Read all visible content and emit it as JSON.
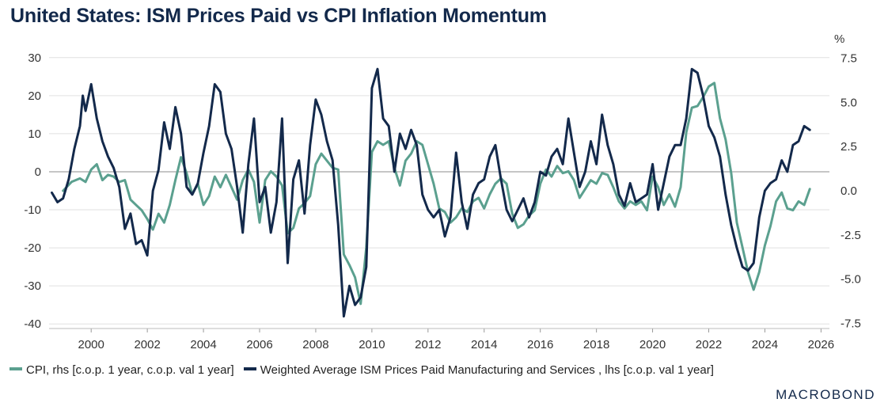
{
  "title": "United States: ISM Prices Paid vs CPI Inflation Momentum",
  "brand": "MACROBOND",
  "colors": {
    "cpi": "#5ba08f",
    "ism": "#13294b",
    "grid": "#e1e1e1",
    "zero": "#8c8c8c"
  },
  "chart_data": {
    "type": "line",
    "title": "United States: ISM Prices Paid vs CPI Inflation Momentum",
    "xlabel": "",
    "ylabel_left": "",
    "ylabel_right": "%",
    "xlim": [
      1998.5,
      2026.3
    ],
    "ylim_left": [
      -41,
      31
    ],
    "ylim_right": [
      -7.75,
      7.75
    ],
    "x_ticks": [
      2000,
      2002,
      2004,
      2006,
      2008,
      2010,
      2012,
      2014,
      2016,
      2018,
      2020,
      2022,
      2024,
      2026
    ],
    "y_ticks_left": [
      30,
      20,
      10,
      0,
      -10,
      -20,
      -30,
      -40
    ],
    "y_ticks_right": [
      "7.5",
      "5.0",
      "2.5",
      "0.0",
      "-2.5",
      "-5.0",
      "-7.5"
    ],
    "grid": true,
    "legend_position": "bottom",
    "series": [
      {
        "name": "CPI, rhs [c.o.p. 1 year, c.o.p. val 1 year]",
        "axis": "right",
        "points": [
          [
            1999.0,
            0.0
          ],
          [
            1999.3,
            0.5
          ],
          [
            1999.6,
            0.7
          ],
          [
            1999.8,
            0.5
          ],
          [
            2000.0,
            1.2
          ],
          [
            2000.2,
            1.5
          ],
          [
            2000.4,
            0.6
          ],
          [
            2000.6,
            0.9
          ],
          [
            2000.8,
            0.8
          ],
          [
            2001.0,
            0.5
          ],
          [
            2001.2,
            0.6
          ],
          [
            2001.4,
            -0.5
          ],
          [
            2001.6,
            -0.8
          ],
          [
            2001.8,
            -1.1
          ],
          [
            2002.0,
            -1.6
          ],
          [
            2002.2,
            -2.2
          ],
          [
            2002.4,
            -1.3
          ],
          [
            2002.6,
            -1.8
          ],
          [
            2002.8,
            -0.8
          ],
          [
            2003.0,
            0.6
          ],
          [
            2003.2,
            1.9
          ],
          [
            2003.4,
            1.0
          ],
          [
            2003.6,
            -0.2
          ],
          [
            2003.8,
            0.4
          ],
          [
            2004.0,
            -0.8
          ],
          [
            2004.2,
            -0.3
          ],
          [
            2004.4,
            0.8
          ],
          [
            2004.6,
            0.2
          ],
          [
            2004.8,
            0.9
          ],
          [
            2005.0,
            0.2
          ],
          [
            2005.2,
            -0.5
          ],
          [
            2005.4,
            0.6
          ],
          [
            2005.6,
            1.2
          ],
          [
            2005.8,
            0.5
          ],
          [
            2006.0,
            -1.8
          ],
          [
            2006.2,
            0.6
          ],
          [
            2006.4,
            1.1
          ],
          [
            2006.6,
            0.8
          ],
          [
            2006.8,
            0.3
          ],
          [
            2007.0,
            -2.4
          ],
          [
            2007.2,
            -2.1
          ],
          [
            2007.4,
            -1.0
          ],
          [
            2007.6,
            -0.7
          ],
          [
            2007.8,
            -0.3
          ],
          [
            2008.0,
            1.5
          ],
          [
            2008.2,
            2.1
          ],
          [
            2008.4,
            1.7
          ],
          [
            2008.6,
            1.3
          ],
          [
            2008.8,
            1.2
          ],
          [
            2009.0,
            -3.6
          ],
          [
            2009.2,
            -4.2
          ],
          [
            2009.4,
            -4.9
          ],
          [
            2009.6,
            -6.4
          ],
          [
            2009.8,
            -3.2
          ],
          [
            2010.0,
            2.2
          ],
          [
            2010.2,
            2.8
          ],
          [
            2010.4,
            2.6
          ],
          [
            2010.6,
            2.8
          ],
          [
            2010.8,
            1.3
          ],
          [
            2011.0,
            0.3
          ],
          [
            2011.2,
            1.7
          ],
          [
            2011.4,
            2.1
          ],
          [
            2011.6,
            2.8
          ],
          [
            2011.8,
            2.6
          ],
          [
            2012.0,
            1.5
          ],
          [
            2012.2,
            0.4
          ],
          [
            2012.4,
            -1.0
          ],
          [
            2012.6,
            -1.2
          ],
          [
            2012.8,
            -1.8
          ],
          [
            2013.0,
            -1.5
          ],
          [
            2013.2,
            -1.0
          ],
          [
            2013.4,
            -1.2
          ],
          [
            2013.6,
            -0.6
          ],
          [
            2013.8,
            -0.4
          ],
          [
            2014.0,
            -1.0
          ],
          [
            2014.2,
            -0.2
          ],
          [
            2014.4,
            0.4
          ],
          [
            2014.6,
            0.7
          ],
          [
            2014.8,
            0.4
          ],
          [
            2015.0,
            -1.3
          ],
          [
            2015.2,
            -2.1
          ],
          [
            2015.4,
            -1.9
          ],
          [
            2015.6,
            -1.4
          ],
          [
            2015.8,
            -1.1
          ],
          [
            2016.0,
            0.4
          ],
          [
            2016.2,
            1.2
          ],
          [
            2016.4,
            0.8
          ],
          [
            2016.6,
            1.4
          ],
          [
            2016.8,
            1.0
          ],
          [
            2017.0,
            1.1
          ],
          [
            2017.2,
            0.6
          ],
          [
            2017.4,
            -0.4
          ],
          [
            2017.6,
            0.1
          ],
          [
            2017.8,
            0.6
          ],
          [
            2018.0,
            0.4
          ],
          [
            2018.2,
            1.0
          ],
          [
            2018.4,
            0.9
          ],
          [
            2018.6,
            0.2
          ],
          [
            2018.8,
            -0.6
          ],
          [
            2019.0,
            -1.0
          ],
          [
            2019.2,
            -0.6
          ],
          [
            2019.4,
            -0.8
          ],
          [
            2019.6,
            -0.6
          ],
          [
            2019.8,
            -1.1
          ],
          [
            2020.0,
            0.8
          ],
          [
            2020.2,
            0.2
          ],
          [
            2020.4,
            -0.8
          ],
          [
            2020.6,
            -0.2
          ],
          [
            2020.8,
            -0.9
          ],
          [
            2021.0,
            0.2
          ],
          [
            2021.2,
            3.3
          ],
          [
            2021.4,
            4.7
          ],
          [
            2021.6,
            4.8
          ],
          [
            2021.8,
            5.3
          ],
          [
            2022.0,
            5.9
          ],
          [
            2022.2,
            6.1
          ],
          [
            2022.4,
            4.1
          ],
          [
            2022.6,
            2.9
          ],
          [
            2022.8,
            1.0
          ],
          [
            2023.0,
            -1.8
          ],
          [
            2023.2,
            -3.2
          ],
          [
            2023.4,
            -4.6
          ],
          [
            2023.6,
            -5.6
          ],
          [
            2023.8,
            -4.6
          ],
          [
            2024.0,
            -3.1
          ],
          [
            2024.2,
            -2.0
          ],
          [
            2024.4,
            -0.6
          ],
          [
            2024.6,
            -0.1
          ],
          [
            2024.8,
            -1.0
          ],
          [
            2025.0,
            -1.1
          ],
          [
            2025.2,
            -0.6
          ],
          [
            2025.4,
            -0.8
          ],
          [
            2025.6,
            0.1
          ]
        ]
      },
      {
        "name": "Weighted Average ISM Prices Paid Manufacturing and Services , lhs [c.o.p. val 1 year]",
        "axis": "left",
        "points": [
          [
            1998.6,
            -5.5
          ],
          [
            1998.8,
            -8.0
          ],
          [
            1999.0,
            -7.0
          ],
          [
            1999.2,
            -2.0
          ],
          [
            1999.4,
            6.0
          ],
          [
            1999.6,
            12.0
          ],
          [
            1999.7,
            20.0
          ],
          [
            1999.8,
            16.0
          ],
          [
            2000.0,
            23.0
          ],
          [
            2000.2,
            14.0
          ],
          [
            2000.4,
            8.0
          ],
          [
            2000.6,
            4.0
          ],
          [
            2000.8,
            1.0
          ],
          [
            2001.0,
            -4.0
          ],
          [
            2001.2,
            -15.0
          ],
          [
            2001.4,
            -11.0
          ],
          [
            2001.6,
            -19.0
          ],
          [
            2001.8,
            -18.0
          ],
          [
            2002.0,
            -22.0
          ],
          [
            2002.2,
            -5.0
          ],
          [
            2002.4,
            0.5
          ],
          [
            2002.6,
            13.0
          ],
          [
            2002.8,
            6.0
          ],
          [
            2003.0,
            17.0
          ],
          [
            2003.2,
            10.0
          ],
          [
            2003.4,
            -4.0
          ],
          [
            2003.6,
            -6.0
          ],
          [
            2003.8,
            -3.0
          ],
          [
            2004.0,
            5.0
          ],
          [
            2004.2,
            12.0
          ],
          [
            2004.4,
            23.0
          ],
          [
            2004.6,
            21.0
          ],
          [
            2004.8,
            10.0
          ],
          [
            2005.0,
            6.0
          ],
          [
            2005.2,
            -4.0
          ],
          [
            2005.4,
            -16.0
          ],
          [
            2005.6,
            2.0
          ],
          [
            2005.8,
            14.0
          ],
          [
            2006.0,
            -8.0
          ],
          [
            2006.2,
            -4.0
          ],
          [
            2006.4,
            -16.0
          ],
          [
            2006.6,
            -8.0
          ],
          [
            2006.8,
            14.0
          ],
          [
            2007.0,
            -24.0
          ],
          [
            2007.2,
            -2.0
          ],
          [
            2007.4,
            3.0
          ],
          [
            2007.6,
            -11.0
          ],
          [
            2007.8,
            7.0
          ],
          [
            2008.0,
            19.0
          ],
          [
            2008.2,
            15.0
          ],
          [
            2008.4,
            8.0
          ],
          [
            2008.6,
            3.0
          ],
          [
            2008.8,
            -14.0
          ],
          [
            2009.0,
            -38.0
          ],
          [
            2009.2,
            -30.0
          ],
          [
            2009.4,
            -35.0
          ],
          [
            2009.6,
            -33.0
          ],
          [
            2009.8,
            -25.0
          ],
          [
            2010.0,
            22.0
          ],
          [
            2010.2,
            27.0
          ],
          [
            2010.4,
            14.0
          ],
          [
            2010.6,
            12.0
          ],
          [
            2010.8,
            0.0
          ],
          [
            2011.0,
            10.0
          ],
          [
            2011.2,
            6.0
          ],
          [
            2011.4,
            11.0
          ],
          [
            2011.6,
            7.0
          ],
          [
            2011.8,
            -6.0
          ],
          [
            2012.0,
            -10.0
          ],
          [
            2012.2,
            -12.0
          ],
          [
            2012.4,
            -10.0
          ],
          [
            2012.6,
            -17.0
          ],
          [
            2012.8,
            -12.0
          ],
          [
            2013.0,
            5.0
          ],
          [
            2013.2,
            -8.0
          ],
          [
            2013.4,
            -15.0
          ],
          [
            2013.6,
            -6.0
          ],
          [
            2013.8,
            -3.0
          ],
          [
            2014.0,
            -2.0
          ],
          [
            2014.2,
            4.0
          ],
          [
            2014.4,
            7.0
          ],
          [
            2014.6,
            -2.0
          ],
          [
            2014.8,
            -10.0
          ],
          [
            2015.0,
            -13.0
          ],
          [
            2015.2,
            -10.0
          ],
          [
            2015.4,
            -7.0
          ],
          [
            2015.6,
            -12.0
          ],
          [
            2015.8,
            -8.0
          ],
          [
            2016.0,
            0.0
          ],
          [
            2016.2,
            -1.0
          ],
          [
            2016.4,
            4.0
          ],
          [
            2016.6,
            6.0
          ],
          [
            2016.8,
            2.0
          ],
          [
            2017.0,
            14.0
          ],
          [
            2017.2,
            5.0
          ],
          [
            2017.4,
            -4.0
          ],
          [
            2017.6,
            0.0
          ],
          [
            2017.8,
            8.0
          ],
          [
            2018.0,
            2.0
          ],
          [
            2018.2,
            15.0
          ],
          [
            2018.4,
            7.0
          ],
          [
            2018.6,
            2.0
          ],
          [
            2018.8,
            -6.0
          ],
          [
            2019.0,
            -9.0
          ],
          [
            2019.2,
            -3.0
          ],
          [
            2019.4,
            -8.0
          ],
          [
            2019.6,
            -7.0
          ],
          [
            2019.8,
            -6.0
          ],
          [
            2020.0,
            2.0
          ],
          [
            2020.2,
            -10.0
          ],
          [
            2020.4,
            -3.0
          ],
          [
            2020.6,
            4.0
          ],
          [
            2020.8,
            7.0
          ],
          [
            2021.0,
            7.0
          ],
          [
            2021.2,
            14.0
          ],
          [
            2021.4,
            27.0
          ],
          [
            2021.6,
            26.0
          ],
          [
            2021.8,
            20.0
          ],
          [
            2022.0,
            12.0
          ],
          [
            2022.2,
            9.0
          ],
          [
            2022.4,
            4.0
          ],
          [
            2022.6,
            -6.0
          ],
          [
            2022.8,
            -14.0
          ],
          [
            2023.0,
            -20.0
          ],
          [
            2023.2,
            -25.0
          ],
          [
            2023.4,
            -26.0
          ],
          [
            2023.6,
            -24.0
          ],
          [
            2023.8,
            -12.0
          ],
          [
            2024.0,
            -5.0
          ],
          [
            2024.2,
            -3.0
          ],
          [
            2024.4,
            -2.0
          ],
          [
            2024.6,
            3.0
          ],
          [
            2024.8,
            0.0
          ],
          [
            2025.0,
            7.0
          ],
          [
            2025.2,
            8.0
          ],
          [
            2025.4,
            12.0
          ],
          [
            2025.6,
            11.0
          ]
        ]
      }
    ]
  }
}
